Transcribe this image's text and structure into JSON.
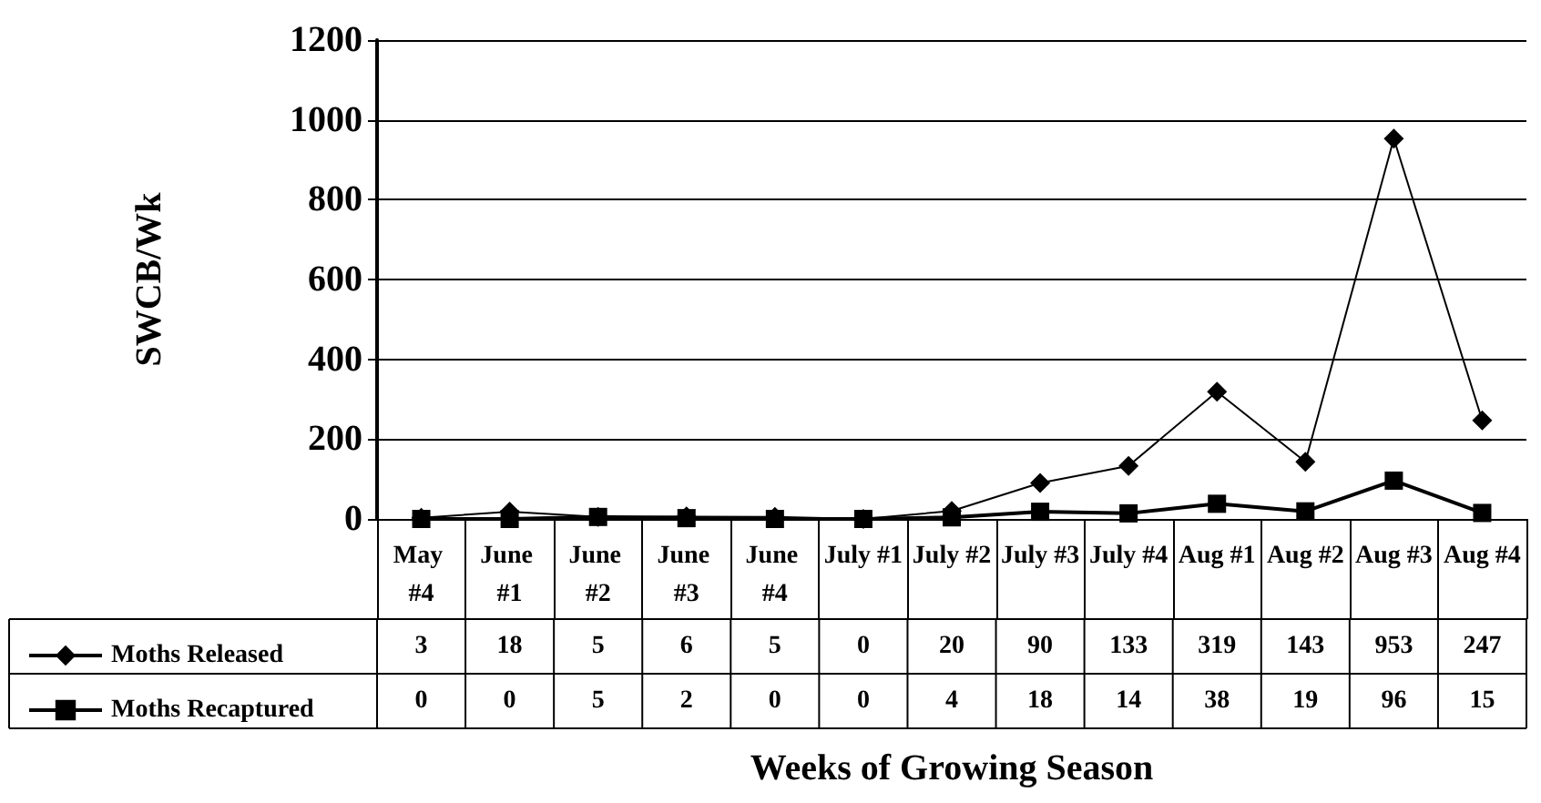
{
  "chart_data": {
    "type": "line",
    "ylabel": "SWCB/Wk",
    "xlabel": "Weeks of Growing Season",
    "categories": [
      "May #4",
      "June #1",
      "June #2",
      "June #3",
      "June #4",
      "July #1",
      "July #2",
      "July #3",
      "July #4",
      "Aug #1",
      "Aug #2",
      "Aug #3",
      "Aug #4"
    ],
    "series": [
      {
        "name": "Moths Released",
        "color": "#000000",
        "marker": "diamond",
        "values": [
          3,
          18,
          5,
          6,
          5,
          0,
          20,
          90,
          133,
          319,
          143,
          953,
          247
        ]
      },
      {
        "name": "Moths Recaptured",
        "color": "#000000",
        "marker": "square",
        "values": [
          0,
          0,
          5,
          2,
          0,
          0,
          4,
          18,
          14,
          38,
          19,
          96,
          15
        ]
      }
    ],
    "ylim": [
      0,
      1200
    ],
    "yticks": [
      0,
      200,
      400,
      600,
      800,
      1000,
      1200
    ],
    "grid": "y",
    "legend": "bottom left",
    "data_labels": true
  }
}
